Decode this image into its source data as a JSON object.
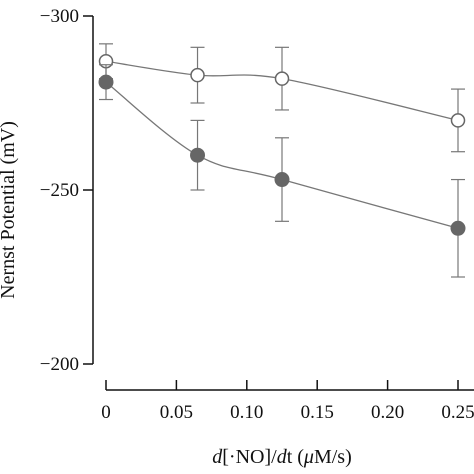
{
  "chart_data": {
    "type": "scatter",
    "ylabel": "Nernst Potential (mV)",
    "xlabel_parts": [
      "d",
      "[·NO]/",
      "d",
      "t (",
      "μ",
      "M/s)"
    ],
    "x_ticks": [
      "0",
      "0.05",
      "0.10",
      "0.15",
      "0.20",
      "0.25"
    ],
    "x_tick_values": [
      0,
      0.05,
      0.1,
      0.15,
      0.2,
      0.25
    ],
    "y_ticks": [
      "−300",
      "−250",
      "−200"
    ],
    "y_tick_values": [
      -300,
      -250,
      -200
    ],
    "xlim": [
      0,
      0.25
    ],
    "ylim": [
      -200,
      -300
    ],
    "y_inverted": true,
    "grid": false,
    "series": [
      {
        "marker": "open-circle",
        "color": "#666666",
        "points": [
          {
            "x": 0,
            "y": -287,
            "err": 5
          },
          {
            "x": 0.065,
            "y": -283,
            "err": 8
          },
          {
            "x": 0.125,
            "y": -282,
            "err": 9
          },
          {
            "x": 0.25,
            "y": -270,
            "err": 9
          }
        ]
      },
      {
        "marker": "filled-circle",
        "color": "#666666",
        "points": [
          {
            "x": 0,
            "y": -281,
            "err": 5
          },
          {
            "x": 0.065,
            "y": -260,
            "err": 10
          },
          {
            "x": 0.125,
            "y": -253,
            "err": 12
          },
          {
            "x": 0.25,
            "y": -239,
            "err": 14
          }
        ]
      }
    ]
  }
}
